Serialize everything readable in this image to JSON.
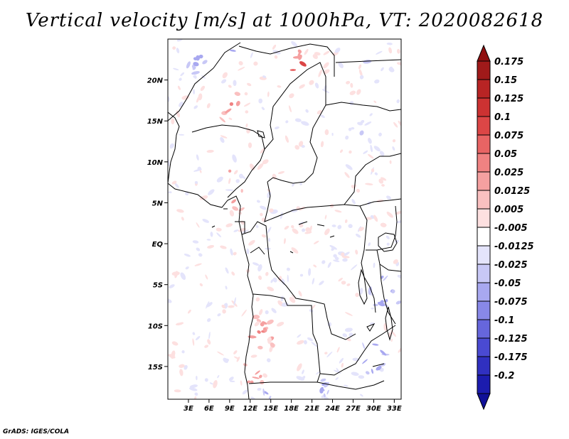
{
  "title": "Vertical velocity [m/s] at 1000hPa, VT: 2020082618",
  "credit": "GrADS: IGES/COLA",
  "map": {
    "lon_range": [
      0,
      34
    ],
    "lat_range": [
      -19,
      25
    ],
    "lat_ticks": [
      {
        "value": 20,
        "label": "20N"
      },
      {
        "value": 15,
        "label": "15N"
      },
      {
        "value": 10,
        "label": "10N"
      },
      {
        "value": 5,
        "label": "5N"
      },
      {
        "value": 0,
        "label": "EQ"
      },
      {
        "value": -5,
        "label": "5S"
      },
      {
        "value": -10,
        "label": "10S"
      },
      {
        "value": -15,
        "label": "15S"
      }
    ],
    "lon_ticks": [
      {
        "value": 3,
        "label": "3E"
      },
      {
        "value": 6,
        "label": "6E"
      },
      {
        "value": 9,
        "label": "9E"
      },
      {
        "value": 12,
        "label": "12E"
      },
      {
        "value": 15,
        "label": "15E"
      },
      {
        "value": 18,
        "label": "18E"
      },
      {
        "value": 21,
        "label": "21E"
      },
      {
        "value": 24,
        "label": "24E"
      },
      {
        "value": 27,
        "label": "27E"
      },
      {
        "value": 30,
        "label": "30E"
      },
      {
        "value": 33,
        "label": "33E"
      }
    ],
    "features": [
      {
        "lon": 19,
        "lat": 21.5,
        "sign": 1,
        "r": 1.4,
        "strength": 0.1
      },
      {
        "lon": 9,
        "lat": 17,
        "sign": 1,
        "r": 1.3,
        "strength": 0.06
      },
      {
        "lon": 9,
        "lat": 9,
        "sign": 1,
        "r": 1.0,
        "strength": 0.03
      },
      {
        "lon": 10,
        "lat": 5,
        "sign": 1,
        "r": 1.2,
        "strength": 0.03
      },
      {
        "lon": 13.5,
        "lat": -11,
        "sign": 1,
        "r": 1.6,
        "strength": 0.05
      },
      {
        "lon": 12.5,
        "lat": -16,
        "sign": 1,
        "r": 1.5,
        "strength": 0.05
      },
      {
        "lon": 4,
        "lat": 23,
        "sign": -1,
        "r": 1.5,
        "strength": 0.05
      },
      {
        "lon": 9,
        "lat": 23.5,
        "sign": -1,
        "r": 1.0,
        "strength": 0.04
      },
      {
        "lon": 31.5,
        "lat": -6,
        "sign": -1,
        "r": 1.8,
        "strength": 0.05
      },
      {
        "lon": 30,
        "lat": -14,
        "sign": -1,
        "r": 1.8,
        "strength": 0.06
      },
      {
        "lon": 14,
        "lat": -18.5,
        "sign": -1,
        "r": 1.5,
        "strength": 0.03
      },
      {
        "lon": 22,
        "lat": -18,
        "sign": -1,
        "r": 1.5,
        "strength": 0.03
      },
      {
        "lon": 28,
        "lat": 13,
        "sign": -1,
        "r": 1.2,
        "strength": 0.02
      },
      {
        "lon": 30,
        "lat": 22,
        "sign": -1,
        "r": 1.2,
        "strength": 0.02
      }
    ]
  },
  "colorbar": {
    "levels": [
      {
        "label": "0.175",
        "color": "#a01a1a"
      },
      {
        "label": "0.15",
        "color": "#b82424"
      },
      {
        "label": "0.125",
        "color": "#cc3232"
      },
      {
        "label": "0.1",
        "color": "#dc4646"
      },
      {
        "label": "0.075",
        "color": "#e86464"
      },
      {
        "label": "0.05",
        "color": "#f08282"
      },
      {
        "label": "0.025",
        "color": "#f5a0a0"
      },
      {
        "label": "0.0125",
        "color": "#fac0c0"
      },
      {
        "label": "0.005",
        "color": "#fde0e0"
      },
      {
        "label": "-0.005",
        "color": "#ffffff"
      },
      {
        "label": "-0.0125",
        "color": "#e4e4fb"
      },
      {
        "label": "-0.025",
        "color": "#c8c8f6"
      },
      {
        "label": "-0.05",
        "color": "#a8a8f0"
      },
      {
        "label": "-0.075",
        "color": "#8888e8"
      },
      {
        "label": "-0.1",
        "color": "#6666dc"
      },
      {
        "label": "-0.125",
        "color": "#4a4ad2"
      },
      {
        "label": "-0.175",
        "color": "#3030c0"
      },
      {
        "label": "-0.2",
        "color": "#1c1cae"
      }
    ],
    "top_arrow_color": "#901010",
    "bottom_arrow_color": "#101098"
  }
}
